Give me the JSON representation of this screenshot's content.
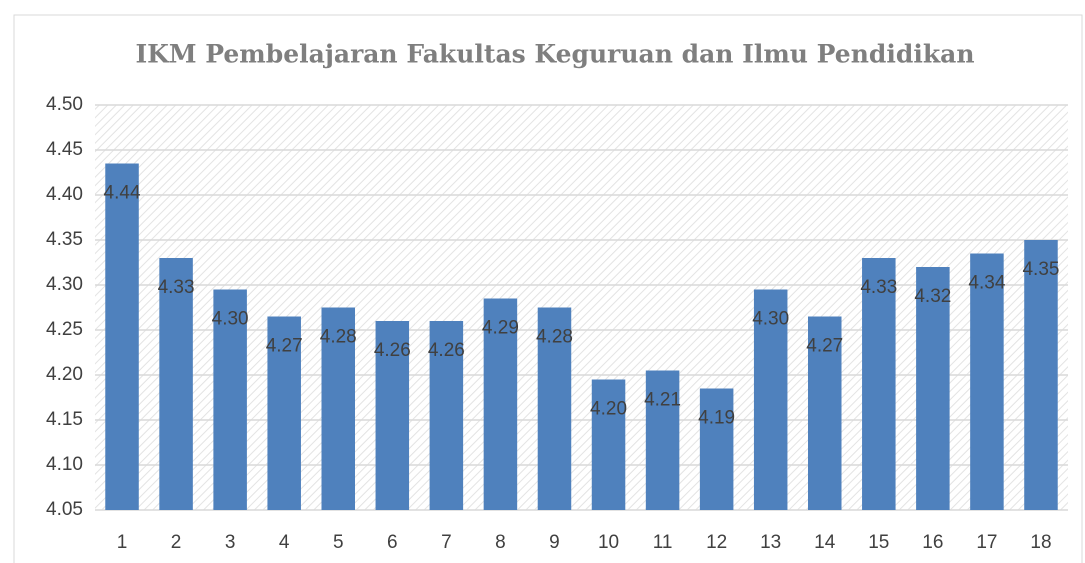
{
  "chart_data": {
    "type": "bar",
    "title": "IKM Pembelajaran Fakultas Keguruan dan Ilmu Pendidikan",
    "categories": [
      "1",
      "2",
      "3",
      "4",
      "5",
      "6",
      "7",
      "8",
      "9",
      "10",
      "11",
      "12",
      "13",
      "14",
      "15",
      "16",
      "17",
      "18"
    ],
    "values": [
      4.435,
      4.33,
      4.295,
      4.265,
      4.275,
      4.26,
      4.26,
      4.285,
      4.275,
      4.195,
      4.205,
      4.185,
      4.295,
      4.265,
      4.33,
      4.32,
      4.335,
      4.35
    ],
    "value_labels": [
      "4.44",
      "4.33",
      "4.30",
      "4.27",
      "4.28",
      "4.26",
      "4.26",
      "4.29",
      "4.28",
      "4.20",
      "4.21",
      "4.19",
      "4.30",
      "4.27",
      "4.33",
      "4.32",
      "4.34",
      "4.35"
    ],
    "color": "#4f81bd",
    "ylim": [
      4.05,
      4.5
    ],
    "yticks": [
      4.05,
      {
        "value": 4.1,
        "label": "4.10"
      },
      4.15,
      {
        "value": 4.2,
        "label": "4.20"
      },
      4.25,
      {
        "value": 4.3,
        "label": "4.30"
      },
      4.35,
      {
        "value": 4.4,
        "label": "4.40"
      },
      4.45,
      {
        "value": 4.5,
        "label": "4.50"
      }
    ],
    "grid": true
  }
}
